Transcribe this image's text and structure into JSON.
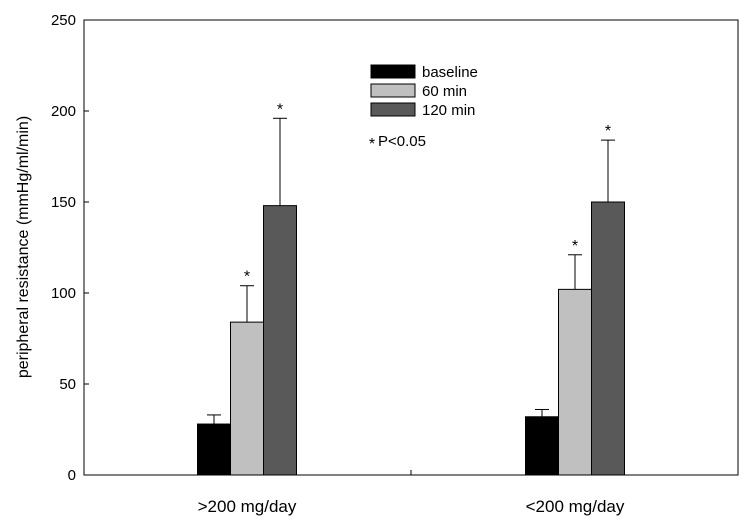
{
  "chart_data": {
    "type": "bar",
    "title": "",
    "xlabel": "",
    "ylabel": "peripheral resistance (mmHg/ml/min)",
    "ylim": [
      0,
      250
    ],
    "yticks": [
      0,
      50,
      100,
      150,
      200,
      250
    ],
    "categories": [
      ">200 mg/day",
      "<200 mg/day"
    ],
    "series": [
      {
        "name": "baseline",
        "color": "#000000",
        "values": [
          28,
          32
        ],
        "errors": [
          5,
          4
        ],
        "significant": [
          false,
          false
        ]
      },
      {
        "name": "60 min",
        "color": "#c0c0c0",
        "values": [
          84,
          102
        ],
        "errors": [
          20,
          19
        ],
        "significant": [
          true,
          true
        ]
      },
      {
        "name": "120 min",
        "color": "#595959",
        "values": [
          148,
          150
        ],
        "errors": [
          48,
          34
        ],
        "significant": [
          true,
          true
        ]
      }
    ],
    "significance_marker": "*",
    "significance_note": "P<0.05",
    "legend_position": "top-center",
    "grid": false
  }
}
